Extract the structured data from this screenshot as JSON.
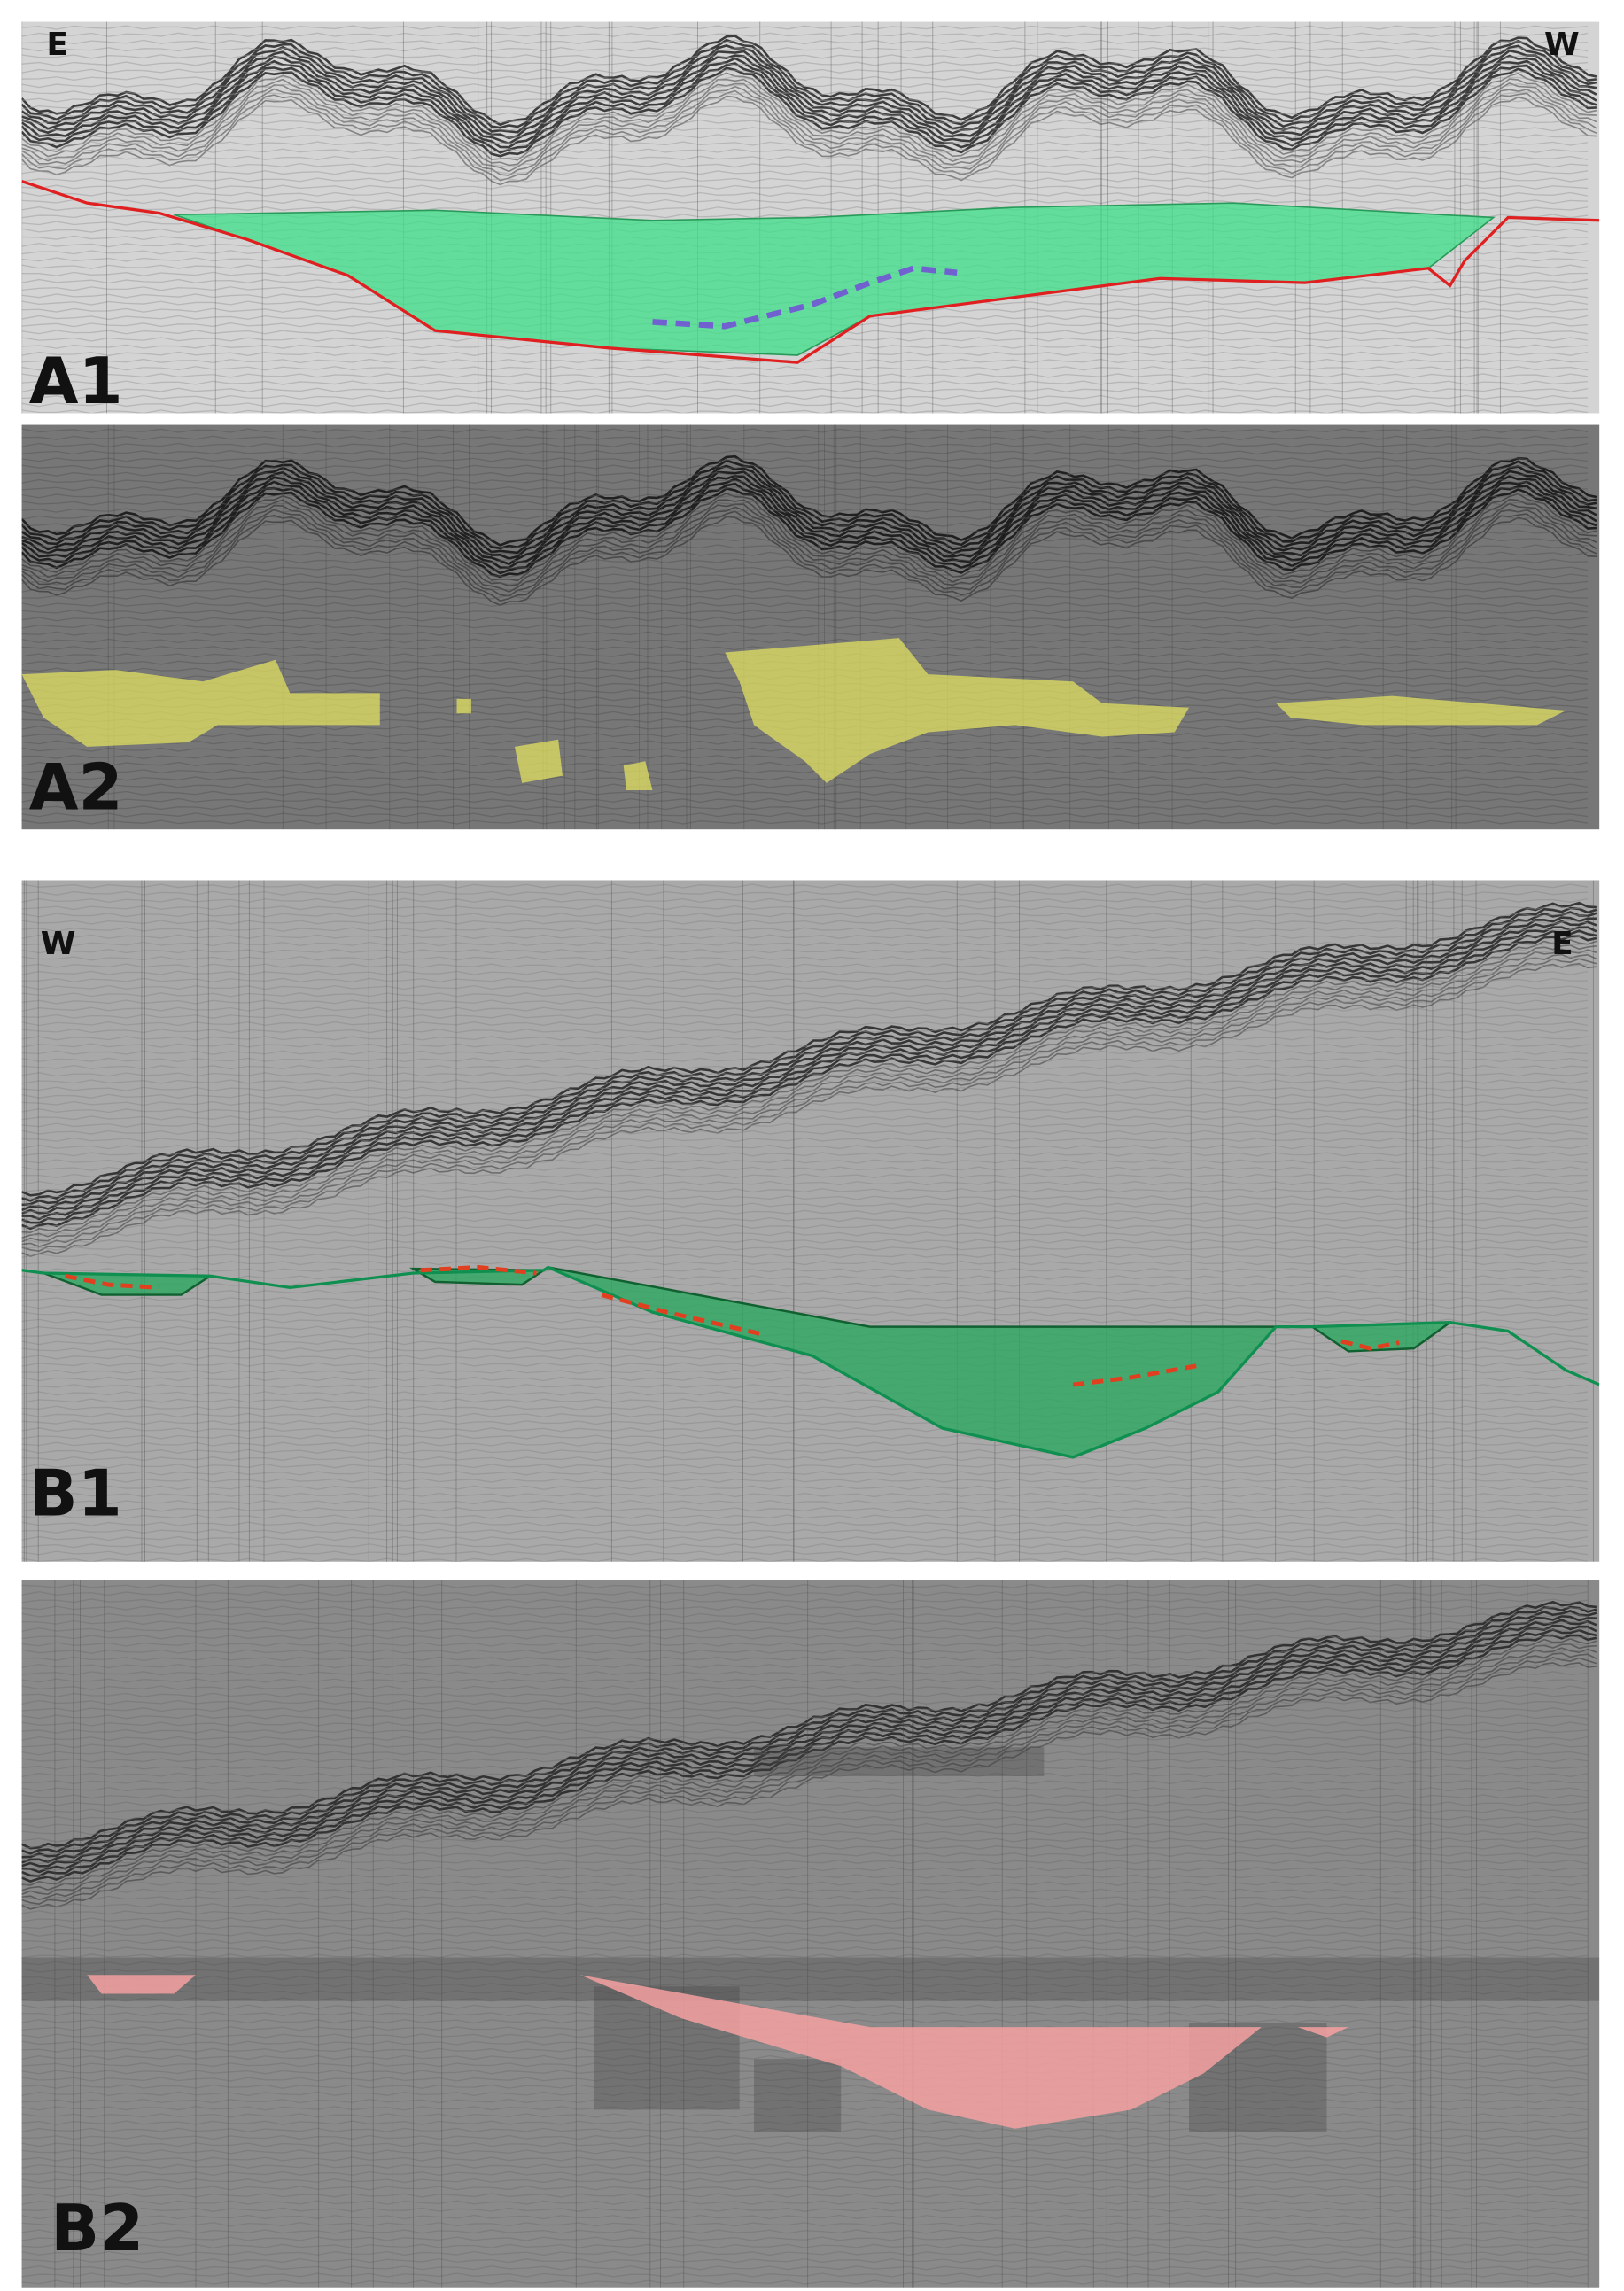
{
  "panels": [
    {
      "label": "A1",
      "left_label": "E",
      "right_label": "W"
    },
    {
      "label": "A2"
    },
    {
      "label": "B1",
      "left_label": "W",
      "right_label": "E"
    },
    {
      "label": "B2"
    }
  ]
}
